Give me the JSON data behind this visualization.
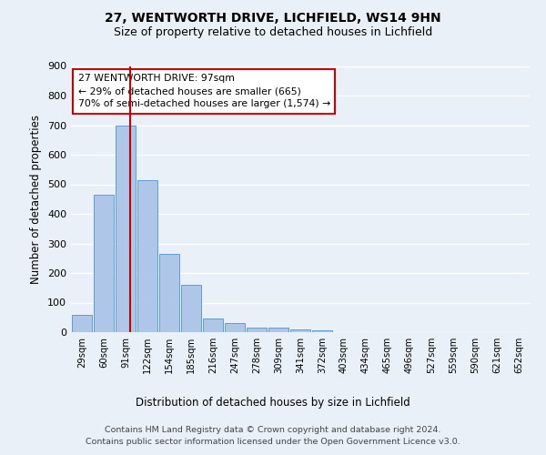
{
  "title1": "27, WENTWORTH DRIVE, LICHFIELD, WS14 9HN",
  "title2": "Size of property relative to detached houses in Lichfield",
  "xlabel": "Distribution of detached houses by size in Lichfield",
  "ylabel": "Number of detached properties",
  "categories": [
    "29sqm",
    "60sqm",
    "91sqm",
    "122sqm",
    "154sqm",
    "185sqm",
    "216sqm",
    "247sqm",
    "278sqm",
    "309sqm",
    "341sqm",
    "372sqm",
    "403sqm",
    "434sqm",
    "465sqm",
    "496sqm",
    "527sqm",
    "559sqm",
    "590sqm",
    "621sqm",
    "652sqm"
  ],
  "values": [
    60,
    465,
    700,
    515,
    265,
    160,
    45,
    30,
    15,
    15,
    10,
    5,
    0,
    0,
    0,
    0,
    0,
    0,
    0,
    0,
    0
  ],
  "bar_color": "#aec6e8",
  "bar_edge_color": "#5a9fd4",
  "annotation_text": "27 WENTWORTH DRIVE: 97sqm\n← 29% of detached houses are smaller (665)\n70% of semi-detached houses are larger (1,574) →",
  "annotation_box_color": "#ffffff",
  "annotation_box_edge_color": "#cc0000",
  "line_color": "#cc0000",
  "ylim": [
    0,
    900
  ],
  "yticks": [
    0,
    100,
    200,
    300,
    400,
    500,
    600,
    700,
    800,
    900
  ],
  "footer_line1": "Contains HM Land Registry data © Crown copyright and database right 2024.",
  "footer_line2": "Contains public sector information licensed under the Open Government Licence v3.0.",
  "bg_color": "#eaf0f8",
  "plot_bg_color": "#eaf0f8",
  "grid_color": "#ffffff",
  "title1_fontsize": 10,
  "title2_fontsize": 9,
  "xlabel_fontsize": 8.5,
  "ylabel_fontsize": 8.5,
  "property_sqm": 97,
  "bin_width": 31
}
